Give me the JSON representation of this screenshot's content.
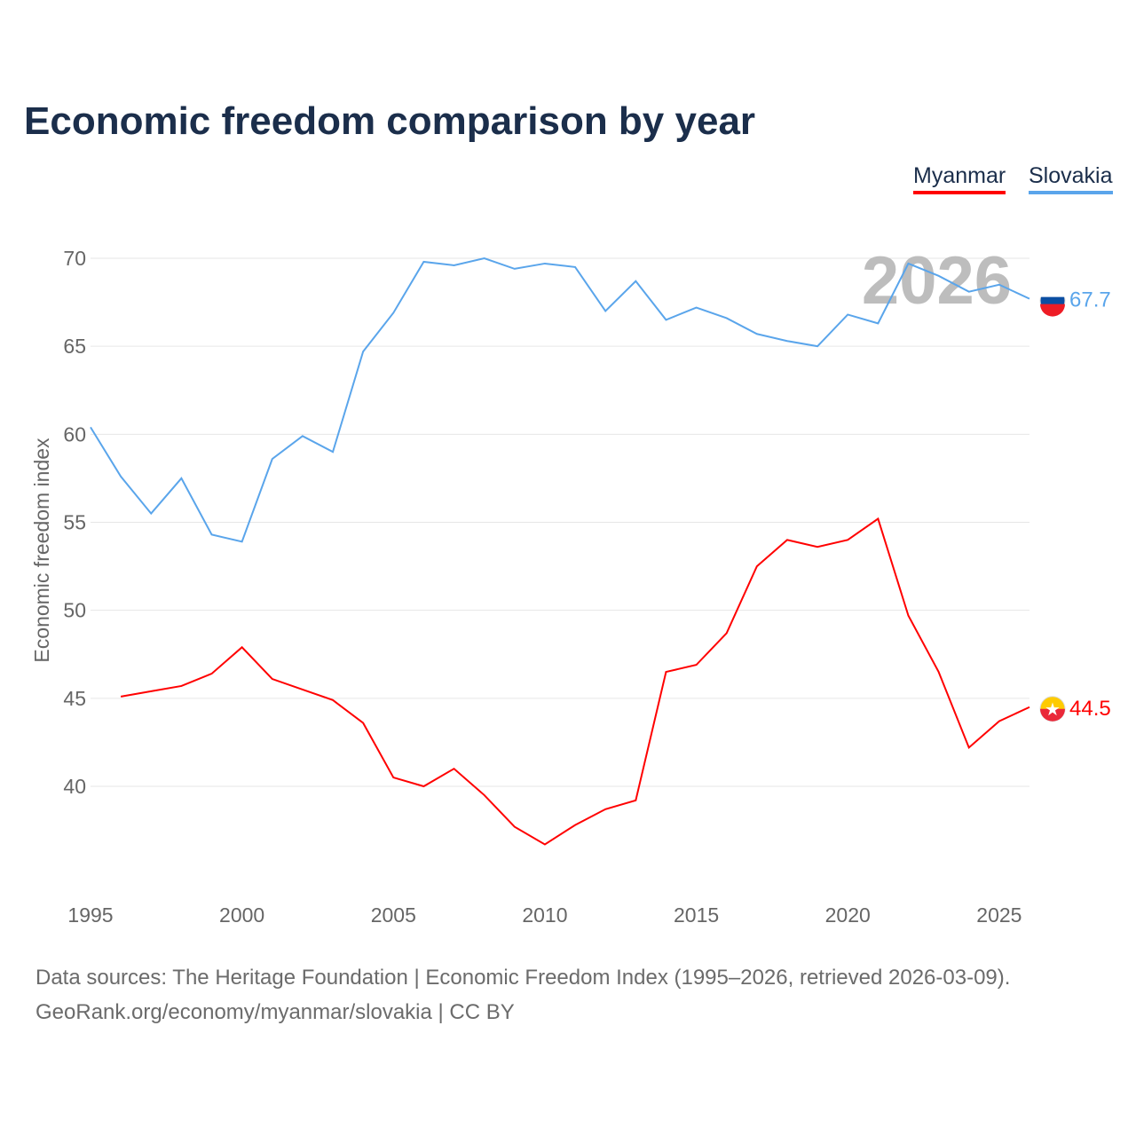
{
  "chart_data": {
    "type": "line",
    "title": "Economic freedom comparison by year",
    "ylabel": "Economic freedom index",
    "xlabel": "",
    "xlim": [
      1995,
      2026
    ],
    "ylim": [
      34,
      72
    ],
    "x_ticks": [
      1995,
      2000,
      2005,
      2010,
      2015,
      2020,
      2025
    ],
    "y_ticks": [
      40,
      45,
      50,
      55,
      60,
      65,
      70
    ],
    "grid": true,
    "legend_position": "top-right",
    "watermark_year": "2026",
    "series": [
      {
        "name": "Myanmar",
        "color": "#ff0000",
        "end_label": "44.5",
        "x": [
          1996,
          1997,
          1998,
          1999,
          2000,
          2001,
          2002,
          2003,
          2004,
          2005,
          2006,
          2007,
          2008,
          2009,
          2010,
          2011,
          2012,
          2013,
          2014,
          2015,
          2016,
          2017,
          2018,
          2019,
          2020,
          2021,
          2022,
          2023,
          2024,
          2025,
          2026
        ],
        "values": [
          45.1,
          45.4,
          45.7,
          46.4,
          47.9,
          46.1,
          45.5,
          44.9,
          43.6,
          40.5,
          40.0,
          41.0,
          39.5,
          37.7,
          36.7,
          37.8,
          38.7,
          39.2,
          46.5,
          46.9,
          48.7,
          52.5,
          54.0,
          53.6,
          54.0,
          55.2,
          49.7,
          46.5,
          42.2,
          43.7,
          44.5
        ]
      },
      {
        "name": "Slovakia",
        "color": "#5aa5eb",
        "end_label": "67.7",
        "x": [
          1995,
          1996,
          1997,
          1998,
          1999,
          2000,
          2001,
          2002,
          2003,
          2004,
          2005,
          2006,
          2007,
          2008,
          2009,
          2010,
          2011,
          2012,
          2013,
          2014,
          2015,
          2016,
          2017,
          2018,
          2019,
          2020,
          2021,
          2022,
          2023,
          2024,
          2025,
          2026
        ],
        "values": [
          60.4,
          57.6,
          55.5,
          57.5,
          54.3,
          53.9,
          58.6,
          59.9,
          59.0,
          64.7,
          66.9,
          69.8,
          69.6,
          70.0,
          69.4,
          69.7,
          69.5,
          67.0,
          68.7,
          66.5,
          67.2,
          66.6,
          65.7,
          65.3,
          65.0,
          66.8,
          66.3,
          69.7,
          69.0,
          68.1,
          68.5,
          67.7
        ]
      }
    ]
  },
  "source_line1": "Data sources: The Heritage Foundation | Economic Freedom Index (1995–2026, retrieved 2026-03-09).",
  "source_line2": "GeoRank.org/economy/myanmar/slovakia | CC BY"
}
